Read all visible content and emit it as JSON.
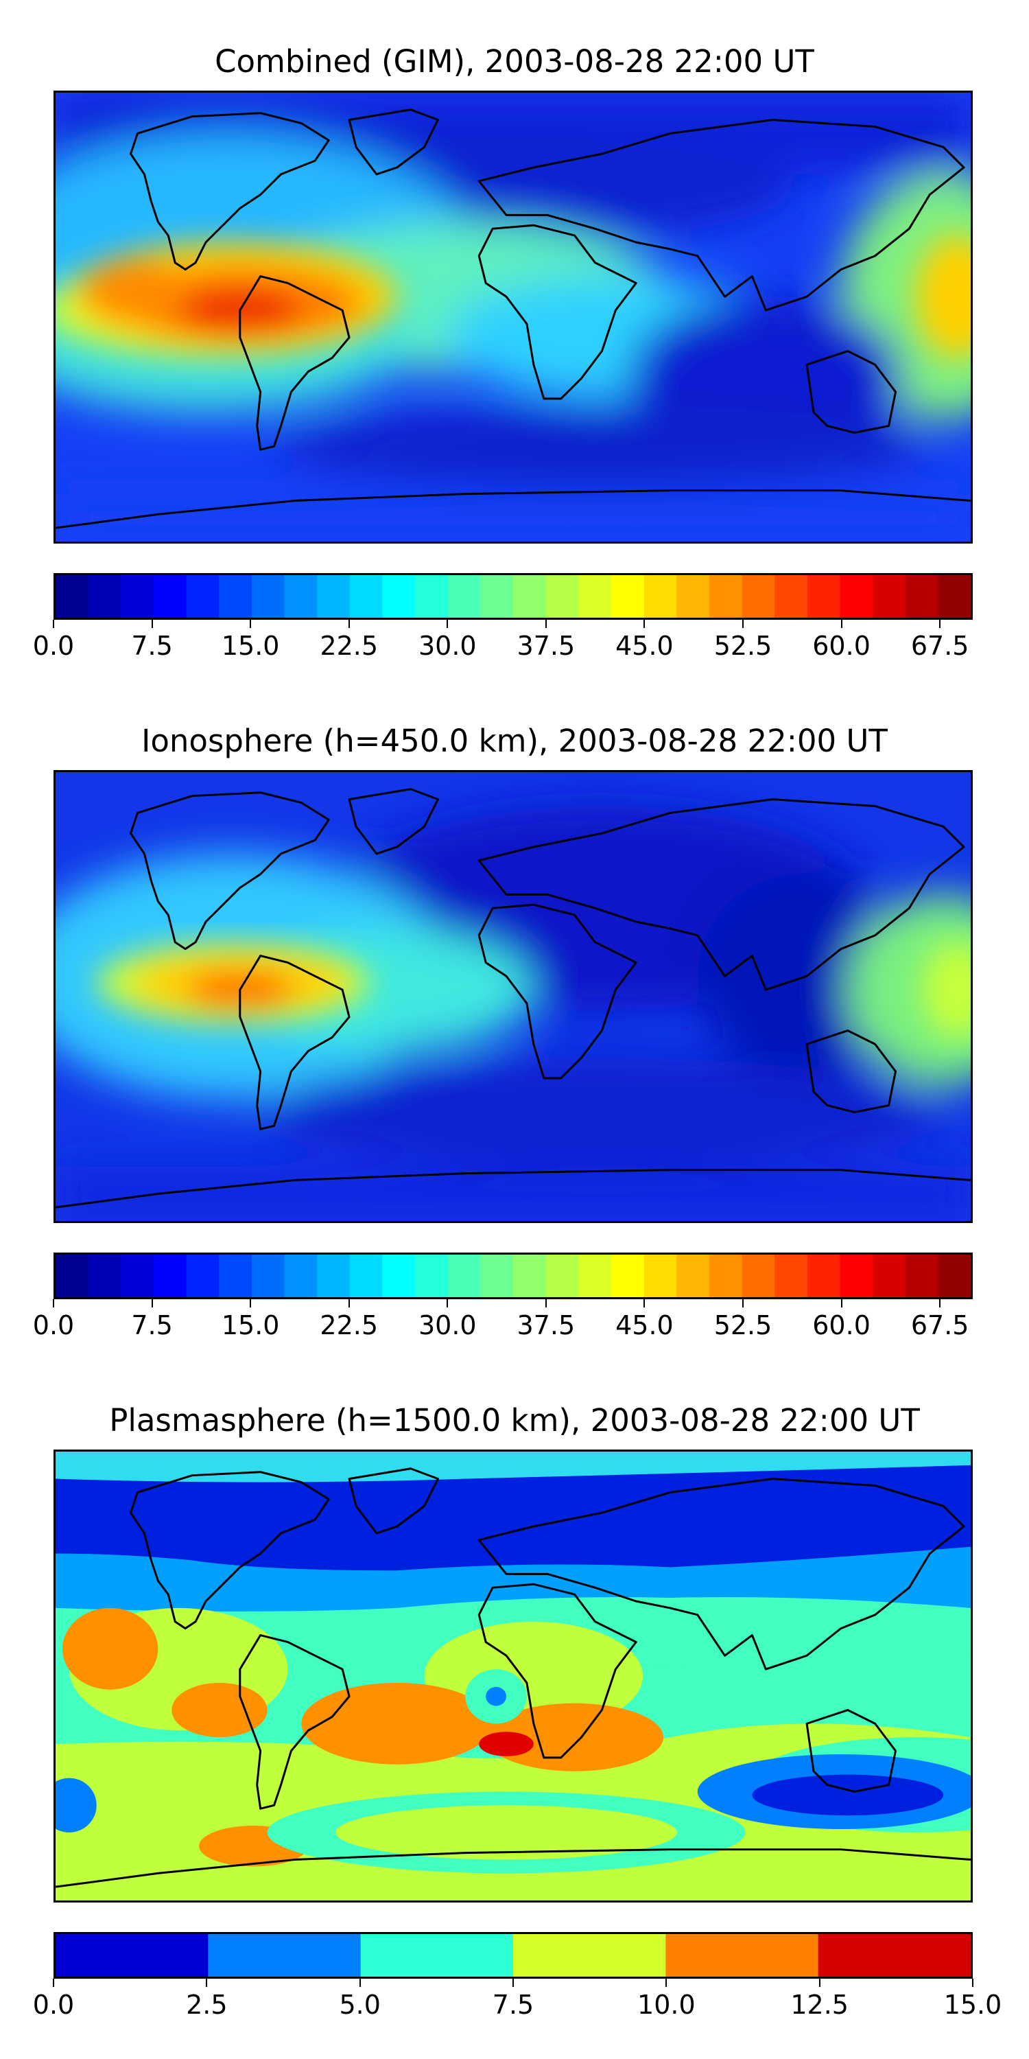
{
  "panels": [
    {
      "title": "Combined (GIM), 2003-08-28 22:00 UT",
      "colorbar": {
        "min": 0.0,
        "max": 70.0,
        "levels": 28,
        "tick_labels": [
          "0.0",
          "7.5",
          "15.0",
          "22.5",
          "30.0",
          "37.5",
          "45.0",
          "52.5",
          "60.0",
          "67.5"
        ],
        "tick_values": [
          0.0,
          7.5,
          15.0,
          22.5,
          30.0,
          37.5,
          45.0,
          52.5,
          60.0,
          67.5
        ],
        "colormap": "jet"
      }
    },
    {
      "title": "Ionosphere  (h=450.0 km), 2003-08-28 22:00 UT",
      "colorbar": {
        "min": 0.0,
        "max": 70.0,
        "levels": 28,
        "tick_labels": [
          "0.0",
          "7.5",
          "15.0",
          "22.5",
          "30.0",
          "37.5",
          "45.0",
          "52.5",
          "60.0",
          "67.5"
        ],
        "tick_values": [
          0.0,
          7.5,
          15.0,
          22.5,
          30.0,
          37.5,
          45.0,
          52.5,
          60.0,
          67.5
        ],
        "colormap": "jet"
      }
    },
    {
      "title": "Plasmasphere (h=1500.0 km), 2003-08-28 22:00 UT",
      "colorbar": {
        "min": 0.0,
        "max": 15.0,
        "levels": 6,
        "tick_labels": [
          "0.0",
          "2.5",
          "5.0",
          "7.5",
          "10.0",
          "12.5",
          "15.0"
        ],
        "tick_values": [
          0.0,
          2.5,
          5.0,
          7.5,
          10.0,
          12.5,
          15.0
        ],
        "colormap": "jet"
      }
    }
  ]
}
